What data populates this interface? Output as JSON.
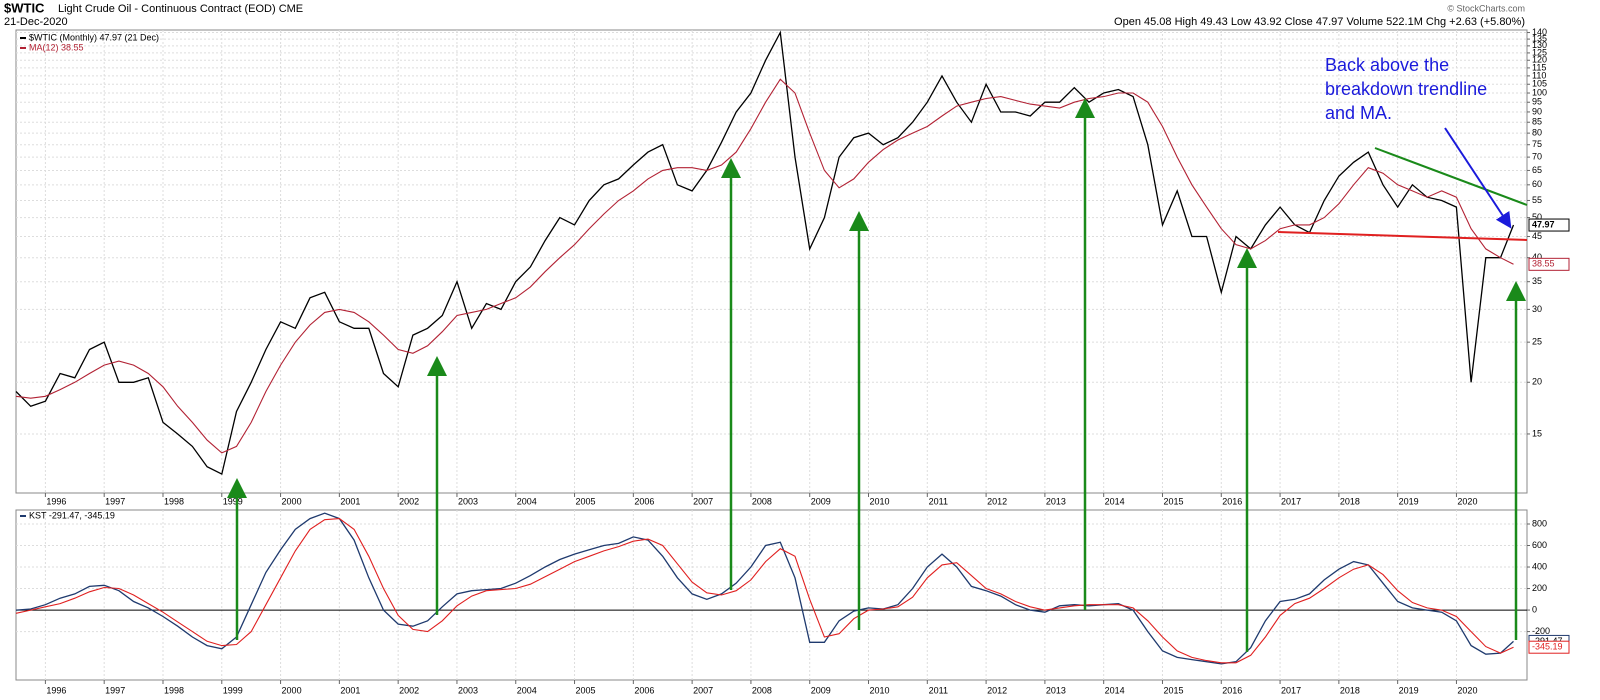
{
  "chart_data": [
    {
      "type": "line",
      "title": "$WTIC",
      "subtitle": "Light Crude Oil - Continuous Contract (EOD) CME",
      "date": "21-Dec-2020",
      "quote": "Open 45.08 High 49.43 Low 43.92 Close 47.97 Volume 522.1M Chg +2.63 (+5.80%)",
      "copyright": "© StockCharts.com",
      "annotation": [
        "Back above the",
        "breakdown trendline",
        "and MA."
      ],
      "log_scale": true,
      "grid": true,
      "legend": "upper left",
      "xlim": [
        1995.5,
        2021.2
      ],
      "xticks": [
        1996,
        1997,
        1998,
        1999,
        2000,
        2001,
        2002,
        2003,
        2004,
        2005,
        2006,
        2007,
        2008,
        2009,
        2010,
        2011,
        2012,
        2013,
        2014,
        2015,
        2016,
        2017,
        2018,
        2019,
        2020
      ],
      "ylim": [
        10.8,
        142
      ],
      "yticks": [
        15,
        20,
        25,
        30,
        35,
        40,
        45,
        50,
        55,
        60,
        65,
        70,
        75,
        80,
        85,
        90,
        95,
        100,
        105,
        110,
        115,
        120,
        125,
        130,
        135,
        140
      ],
      "x": [
        1995.5,
        1995.75,
        1996,
        1996.25,
        1996.5,
        1996.75,
        1997,
        1997.25,
        1997.5,
        1997.75,
        1998,
        1998.25,
        1998.5,
        1998.75,
        1999,
        1999.25,
        1999.5,
        1999.75,
        2000,
        2000.25,
        2000.5,
        2000.75,
        2001,
        2001.25,
        2001.5,
        2001.75,
        2002,
        2002.25,
        2002.5,
        2002.75,
        2003,
        2003.25,
        2003.5,
        2003.75,
        2004,
        2004.25,
        2004.5,
        2004.75,
        2005,
        2005.25,
        2005.5,
        2005.75,
        2006,
        2006.25,
        2006.5,
        2006.75,
        2007,
        2007.25,
        2007.5,
        2007.75,
        2008,
        2008.25,
        2008.5,
        2008.75,
        2009,
        2009.25,
        2009.5,
        2009.75,
        2010,
        2010.25,
        2010.5,
        2010.75,
        2011,
        2011.25,
        2011.5,
        2011.75,
        2012,
        2012.25,
        2012.5,
        2012.75,
        2013,
        2013.25,
        2013.5,
        2013.75,
        2014,
        2014.25,
        2014.5,
        2014.75,
        2015,
        2015.25,
        2015.5,
        2015.75,
        2016,
        2016.25,
        2016.5,
        2016.75,
        2017,
        2017.25,
        2017.5,
        2017.75,
        2018,
        2018.25,
        2018.5,
        2018.75,
        2019,
        2019.25,
        2019.5,
        2019.75,
        2020,
        2020.25,
        2020.5,
        2020.75,
        2020.97
      ],
      "series": [
        {
          "name": "$WTIC (Monthly) 47.97 (21 Dec)",
          "color": "#000000",
          "values": [
            19,
            17.5,
            18,
            21,
            20.5,
            24,
            25,
            20,
            20,
            20.5,
            16,
            15,
            14,
            12.5,
            12,
            17,
            20,
            24,
            28,
            27,
            32,
            33,
            28,
            27,
            27,
            21,
            19.5,
            26,
            27,
            29,
            35,
            27,
            31,
            30,
            35,
            38,
            44,
            50,
            48,
            55,
            60,
            62,
            67,
            72,
            75,
            60,
            58,
            65,
            76,
            90,
            100,
            120,
            140,
            70,
            42,
            50,
            70,
            78,
            80,
            75,
            78,
            85,
            95,
            110,
            95,
            85,
            105,
            90,
            90,
            88,
            95,
            95,
            103,
            95,
            100,
            102,
            98,
            75,
            48,
            58,
            45,
            45,
            33,
            45,
            42,
            48,
            53,
            48,
            46,
            55,
            63,
            68,
            72,
            60,
            53,
            60,
            56,
            55,
            53,
            20,
            40,
            40,
            47.97
          ]
        },
        {
          "name": "MA(12) 38.55",
          "color": "#b22234",
          "values": [
            18.5,
            18.3,
            18.5,
            19.2,
            20,
            21,
            22,
            22.5,
            22,
            21,
            19.5,
            17.5,
            16,
            14.5,
            13.5,
            14,
            16,
            19,
            22,
            25,
            27.5,
            29.5,
            30,
            29.5,
            28,
            26,
            24,
            23.5,
            24.5,
            26.5,
            29,
            29.5,
            30,
            31,
            32,
            34,
            37,
            40,
            43,
            47,
            51,
            55,
            58,
            62,
            65,
            66,
            66,
            65,
            67,
            72,
            82,
            95,
            108,
            100,
            80,
            65,
            59,
            62,
            68,
            73,
            77,
            80,
            83,
            88,
            93,
            95,
            97,
            98,
            96,
            94,
            93,
            92,
            95,
            97,
            98,
            100,
            100,
            95,
            83,
            70,
            60,
            53,
            47,
            43,
            42,
            44,
            47,
            48,
            48,
            50,
            54,
            60,
            66,
            64,
            60,
            58,
            56,
            58,
            56,
            47,
            42,
            40,
            38.55
          ]
        }
      ]
    },
    {
      "type": "line",
      "legend": "KST -291.47, -345.19",
      "grid": true,
      "ylim": [
        -650,
        930
      ],
      "yticks": [
        -200,
        0,
        200,
        400,
        600,
        800
      ],
      "series": [
        {
          "color": "#1f3a6e",
          "values": [
            0,
            10,
            50,
            110,
            150,
            220,
            230,
            180,
            80,
            20,
            -60,
            -150,
            -250,
            -330,
            -360,
            -250,
            50,
            350,
            560,
            750,
            850,
            900,
            850,
            650,
            300,
            0,
            -130,
            -150,
            -100,
            30,
            150,
            180,
            190,
            200,
            250,
            320,
            400,
            470,
            520,
            560,
            600,
            620,
            680,
            650,
            500,
            300,
            150,
            100,
            150,
            250,
            400,
            600,
            630,
            300,
            -300,
            -300,
            -100,
            -10,
            20,
            10,
            50,
            200,
            400,
            520,
            400,
            220,
            180,
            130,
            50,
            0,
            -20,
            40,
            50,
            40,
            50,
            60,
            0,
            -200,
            -380,
            -440,
            -460,
            -480,
            -500,
            -480,
            -350,
            -100,
            80,
            100,
            150,
            280,
            380,
            450,
            420,
            250,
            80,
            20,
            0,
            -20,
            -100,
            -330,
            -410,
            -400,
            -291.47
          ]
        },
        {
          "color": "#e02020",
          "values": [
            -30,
            0,
            30,
            60,
            110,
            170,
            210,
            200,
            140,
            60,
            -20,
            -110,
            -200,
            -290,
            -330,
            -320,
            -200,
            50,
            300,
            550,
            750,
            840,
            850,
            750,
            500,
            200,
            -50,
            -180,
            -200,
            -100,
            40,
            130,
            180,
            190,
            200,
            240,
            310,
            380,
            450,
            500,
            550,
            590,
            640,
            660,
            600,
            430,
            260,
            160,
            140,
            180,
            280,
            450,
            570,
            500,
            100,
            -250,
            -220,
            -80,
            0,
            10,
            30,
            120,
            300,
            420,
            440,
            320,
            200,
            150,
            80,
            30,
            0,
            20,
            40,
            50,
            50,
            50,
            20,
            -100,
            -250,
            -380,
            -440,
            -470,
            -490,
            -490,
            -420,
            -250,
            -50,
            60,
            110,
            200,
            300,
            380,
            420,
            330,
            180,
            70,
            20,
            0,
            -60,
            -200,
            -340,
            -400,
            -345.19
          ]
        }
      ]
    }
  ]
}
